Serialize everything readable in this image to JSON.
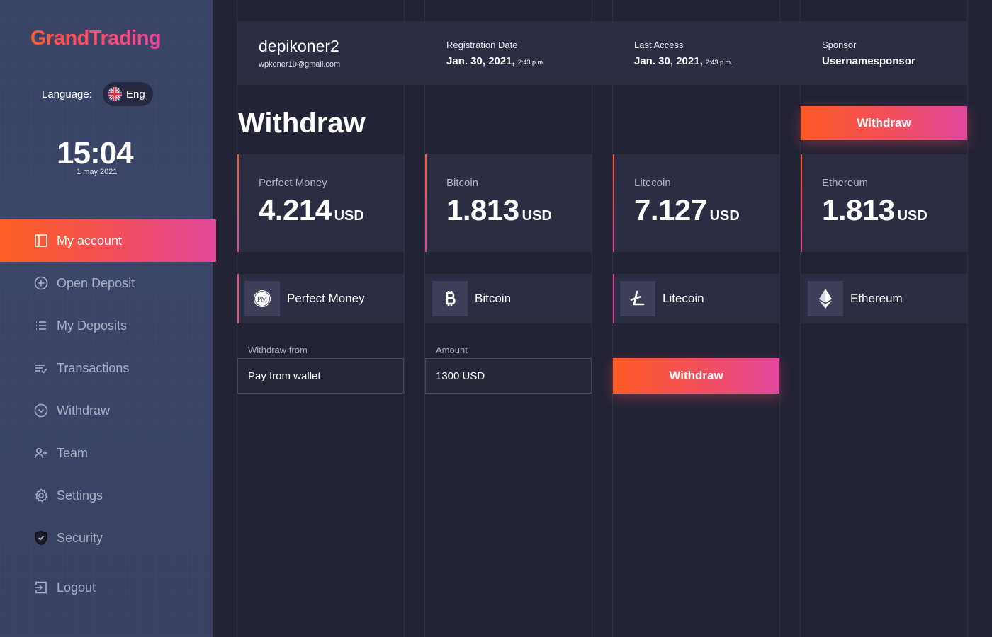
{
  "brand": {
    "logo_text": "GrandTrading",
    "accent_start": "#ff5a25",
    "accent_end": "#e2479e"
  },
  "sidebar": {
    "language_label": "Language:",
    "language_value": "Eng",
    "clock_time": "15:04",
    "clock_date": "1 may 2021",
    "items": [
      {
        "label": "My account",
        "icon": "account-panel-icon",
        "active": true
      },
      {
        "label": "Open Deposit",
        "icon": "plus-circle-icon"
      },
      {
        "label": "My Deposits",
        "icon": "list-icon"
      },
      {
        "label": "Transactions",
        "icon": "transactions-icon"
      },
      {
        "label": "Withdraw",
        "icon": "chevron-circle-icon"
      },
      {
        "label": "Team",
        "icon": "add-user-icon"
      },
      {
        "label": "Settings",
        "icon": "gear-icon"
      },
      {
        "label": "Security",
        "icon": "shield-icon"
      },
      {
        "label": "Logout",
        "icon": "logout-icon"
      }
    ]
  },
  "header": {
    "username": "depikoner2",
    "email": "wpkoner10@gmail.com",
    "registration_label": "Registration Date",
    "registration_date": "Jan. 30, 2021,",
    "registration_time": "2:43 p.m.",
    "last_access_label": "Last Access",
    "last_access_date": "Jan. 30, 2021,",
    "last_access_time": "2:43 p.m.",
    "sponsor_label": "Sponsor",
    "sponsor_value": "Usernamesponsor"
  },
  "page": {
    "title": "Withdraw",
    "top_button": "Withdraw"
  },
  "balances": [
    {
      "name": "Perfect Money",
      "value": "4.214",
      "unit": "USD"
    },
    {
      "name": "Bitcoin",
      "value": "1.813",
      "unit": "USD"
    },
    {
      "name": "Litecoin",
      "value": "7.127",
      "unit": "USD"
    },
    {
      "name": "Ethereum",
      "value": "1.813",
      "unit": "USD"
    }
  ],
  "methods": [
    {
      "name": "Perfect Money",
      "icon": "perfect-money-icon",
      "icon_text": "PM"
    },
    {
      "name": "Bitcoin",
      "icon": "bitcoin-icon"
    },
    {
      "name": "Litecoin",
      "icon": "litecoin-icon"
    },
    {
      "name": "Ethereum",
      "icon": "ethereum-icon"
    }
  ],
  "form": {
    "withdraw_from_label": "Withdraw from",
    "withdraw_from_value": "Pay from wallet",
    "amount_label": "Amount",
    "amount_value": "1300 USD",
    "submit_label": "Withdraw"
  }
}
